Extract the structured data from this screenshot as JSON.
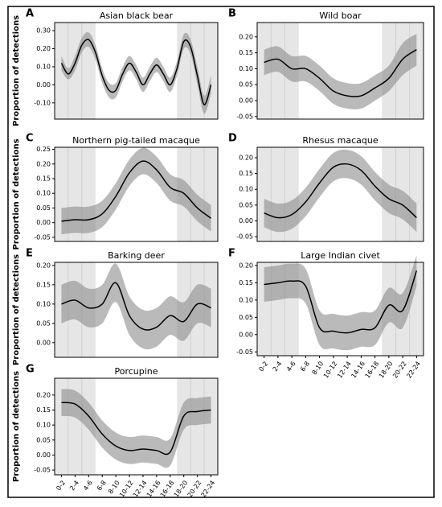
{
  "chart_data": [
    {
      "type": "line",
      "letter": "A",
      "title": "Asian black bear",
      "ylabel": "Proportion of detections",
      "x": [
        1,
        2,
        3,
        4,
        5,
        6,
        7,
        8,
        9,
        10,
        11,
        12,
        13,
        14,
        15,
        16,
        17,
        18,
        19,
        20,
        21,
        22,
        23
      ],
      "values": [
        0.12,
        0.06,
        0.12,
        0.22,
        0.25,
        0.18,
        0.05,
        -0.03,
        -0.03,
        0.06,
        0.12,
        0.07,
        0.0,
        0.06,
        0.11,
        0.06,
        0.0,
        0.09,
        0.24,
        0.21,
        0.05,
        -0.11,
        0.0
      ],
      "lower": [
        0.08,
        0.03,
        0.08,
        0.18,
        0.21,
        0.14,
        0.01,
        -0.07,
        -0.07,
        0.02,
        0.08,
        0.03,
        -0.04,
        0.02,
        0.07,
        0.02,
        -0.04,
        0.05,
        0.2,
        0.17,
        0.0,
        -0.16,
        -0.05
      ],
      "upper": [
        0.16,
        0.09,
        0.16,
        0.26,
        0.29,
        0.22,
        0.09,
        0.01,
        0.01,
        0.1,
        0.16,
        0.11,
        0.04,
        0.1,
        0.15,
        0.1,
        0.04,
        0.13,
        0.28,
        0.25,
        0.1,
        -0.06,
        0.05
      ],
      "xlim": [
        0,
        24
      ],
      "ylim": [
        -0.19,
        0.345
      ],
      "shade": [
        [
          0,
          6
        ],
        [
          18,
          24
        ]
      ],
      "yticks": [
        {
          "value": -0.1,
          "label": "-0.10"
        },
        {
          "value": 0,
          "label": "0.00"
        },
        {
          "value": 0.1,
          "label": "0.10"
        },
        {
          "value": 0.2,
          "label": "0.20"
        },
        {
          "value": 0.3,
          "label": "0.30"
        }
      ]
    },
    {
      "type": "line",
      "letter": "B",
      "title": "Wild boar",
      "x": [
        1,
        3,
        5,
        7,
        9,
        11,
        13,
        15,
        17,
        19,
        21,
        23
      ],
      "values": [
        0.12,
        0.13,
        0.1,
        0.1,
        0.07,
        0.03,
        0.015,
        0.015,
        0.04,
        0.07,
        0.13,
        0.16
      ],
      "lower": [
        0.08,
        0.09,
        0.06,
        0.06,
        0.03,
        -0.01,
        -0.025,
        -0.025,
        0.0,
        0.03,
        0.08,
        0.11
      ],
      "upper": [
        0.16,
        0.17,
        0.14,
        0.14,
        0.11,
        0.07,
        0.055,
        0.055,
        0.08,
        0.11,
        0.18,
        0.21
      ],
      "xlim": [
        0,
        24
      ],
      "ylim": [
        -0.058,
        0.245
      ],
      "shade": [
        [
          0,
          6
        ],
        [
          18,
          24
        ]
      ],
      "yticks": [
        {
          "value": -0.05,
          "label": "-0.05"
        },
        {
          "value": 0,
          "label": "0.00"
        },
        {
          "value": 0.05,
          "label": "0.05"
        },
        {
          "value": 0.1,
          "label": "0.10"
        },
        {
          "value": 0.15,
          "label": "0.15"
        },
        {
          "value": 0.2,
          "label": "0.20"
        }
      ]
    },
    {
      "type": "line",
      "letter": "C",
      "title": "Northern pig-tailed macaque",
      "ylabel": "Proportion of detections",
      "x": [
        1,
        3,
        5,
        7,
        9,
        11,
        13,
        15,
        17,
        19,
        21,
        23
      ],
      "values": [
        0.005,
        0.01,
        0.01,
        0.03,
        0.09,
        0.17,
        0.21,
        0.18,
        0.12,
        0.1,
        0.05,
        0.015
      ],
      "lower": [
        -0.04,
        -0.035,
        -0.035,
        -0.015,
        0.045,
        0.125,
        0.165,
        0.135,
        0.075,
        0.055,
        0.005,
        -0.03
      ],
      "upper": [
        0.05,
        0.055,
        0.055,
        0.075,
        0.135,
        0.215,
        0.255,
        0.225,
        0.165,
        0.145,
        0.095,
        0.06
      ],
      "xlim": [
        0,
        24
      ],
      "ylim": [
        -0.064,
        0.257
      ],
      "shade": [
        [
          0,
          6
        ],
        [
          18,
          24
        ]
      ],
      "yticks": [
        {
          "value": -0.05,
          "label": "-0.05"
        },
        {
          "value": 0,
          "label": "0.00"
        },
        {
          "value": 0.05,
          "label": "0.05"
        },
        {
          "value": 0.1,
          "label": "0.10"
        },
        {
          "value": 0.15,
          "label": "0.15"
        },
        {
          "value": 0.2,
          "label": "0.20"
        },
        {
          "value": 0.25,
          "label": "0.25"
        }
      ]
    },
    {
      "type": "line",
      "letter": "D",
      "title": "Rhesus macaque",
      "x": [
        1,
        3,
        5,
        7,
        9,
        11,
        13,
        15,
        17,
        19,
        21,
        23
      ],
      "values": [
        0.025,
        0.01,
        0.02,
        0.06,
        0.12,
        0.17,
        0.18,
        0.16,
        0.11,
        0.07,
        0.05,
        0.01
      ],
      "lower": [
        -0.02,
        -0.035,
        -0.025,
        0.015,
        0.075,
        0.125,
        0.135,
        0.115,
        0.065,
        0.025,
        0.005,
        -0.035
      ],
      "upper": [
        0.07,
        0.055,
        0.065,
        0.105,
        0.165,
        0.215,
        0.225,
        0.205,
        0.155,
        0.115,
        0.095,
        0.055
      ],
      "xlim": [
        0,
        24
      ],
      "ylim": [
        -0.065,
        0.233
      ],
      "shade": [
        [
          0,
          6
        ],
        [
          18,
          24
        ]
      ],
      "yticks": [
        {
          "value": -0.05,
          "label": "-0.05"
        },
        {
          "value": 0,
          "label": "0.00"
        },
        {
          "value": 0.05,
          "label": "0.05"
        },
        {
          "value": 0.1,
          "label": "0.10"
        },
        {
          "value": 0.15,
          "label": "0.15"
        },
        {
          "value": 0.2,
          "label": "0.20"
        }
      ]
    },
    {
      "type": "line",
      "letter": "E",
      "title": "Barking deer",
      "ylabel": "Proportion of detections",
      "x": [
        1,
        3,
        5,
        7,
        9,
        11,
        13,
        15,
        17,
        19,
        21,
        23
      ],
      "values": [
        0.1,
        0.11,
        0.09,
        0.1,
        0.155,
        0.07,
        0.035,
        0.04,
        0.07,
        0.055,
        0.1,
        0.09
      ],
      "lower": [
        0.05,
        0.06,
        0.04,
        0.05,
        0.105,
        0.02,
        -0.015,
        -0.01,
        0.02,
        0.005,
        0.05,
        0.04
      ],
      "upper": [
        0.15,
        0.16,
        0.14,
        0.15,
        0.205,
        0.12,
        0.085,
        0.09,
        0.12,
        0.105,
        0.15,
        0.14
      ],
      "xlim": [
        0,
        24
      ],
      "ylim": [
        -0.038,
        0.208
      ],
      "shade": [
        [
          0,
          6
        ],
        [
          18,
          24
        ]
      ],
      "yticks": [
        {
          "value": 0,
          "label": "0.00"
        },
        {
          "value": 0.05,
          "label": "0.05"
        },
        {
          "value": 0.1,
          "label": "0.10"
        },
        {
          "value": 0.15,
          "label": "0.15"
        },
        {
          "value": 0.2,
          "label": "0.20"
        }
      ]
    },
    {
      "type": "line",
      "letter": "F",
      "title": "Large Indian civet",
      "x": [
        1,
        3,
        5,
        7,
        9,
        11,
        13,
        15,
        17,
        19,
        21,
        23
      ],
      "values": [
        0.145,
        0.15,
        0.155,
        0.14,
        0.02,
        0.01,
        0.005,
        0.015,
        0.02,
        0.085,
        0.07,
        0.185
      ],
      "lower": [
        0.095,
        0.1,
        0.105,
        0.09,
        -0.03,
        -0.04,
        -0.045,
        -0.035,
        -0.03,
        0.035,
        0.02,
        0.14
      ],
      "upper": [
        0.195,
        0.2,
        0.205,
        0.19,
        0.07,
        0.06,
        0.055,
        0.065,
        0.07,
        0.135,
        0.12,
        0.23
      ],
      "xlim": [
        0,
        24
      ],
      "ylim": [
        -0.061,
        0.209
      ],
      "shade": [
        [
          0,
          6
        ],
        [
          18,
          24
        ]
      ],
      "yticks": [
        {
          "value": -0.05,
          "label": "-0.05"
        },
        {
          "value": 0,
          "label": "0.00"
        },
        {
          "value": 0.05,
          "label": "0.05"
        },
        {
          "value": 0.1,
          "label": "0.10"
        },
        {
          "value": 0.15,
          "label": "0.15"
        },
        {
          "value": 0.2,
          "label": "0.20"
        }
      ],
      "xticks": [
        {
          "value": 1,
          "label": "0-2"
        },
        {
          "value": 3,
          "label": "2-4"
        },
        {
          "value": 5,
          "label": "4-6"
        },
        {
          "value": 7,
          "label": "6-8"
        },
        {
          "value": 9,
          "label": "8-10"
        },
        {
          "value": 11,
          "label": "10-12"
        },
        {
          "value": 13,
          "label": "12-14"
        },
        {
          "value": 15,
          "label": "14-16"
        },
        {
          "value": 17,
          "label": "16-18"
        },
        {
          "value": 19,
          "label": "18-20"
        },
        {
          "value": 21,
          "label": "20-22"
        },
        {
          "value": 23,
          "label": "22-24"
        }
      ]
    },
    {
      "type": "line",
      "letter": "G",
      "title": "Porcupine",
      "ylabel": "Proportion of detections",
      "x": [
        1,
        3,
        5,
        7,
        9,
        11,
        13,
        15,
        17,
        19,
        21,
        23
      ],
      "values": [
        0.175,
        0.17,
        0.13,
        0.07,
        0.03,
        0.015,
        0.02,
        0.015,
        0.01,
        0.13,
        0.145,
        0.15
      ],
      "lower": [
        0.13,
        0.125,
        0.085,
        0.025,
        -0.015,
        -0.03,
        -0.025,
        -0.03,
        -0.035,
        0.085,
        0.1,
        0.105
      ],
      "upper": [
        0.22,
        0.215,
        0.175,
        0.115,
        0.075,
        0.06,
        0.065,
        0.06,
        0.055,
        0.175,
        0.19,
        0.195
      ],
      "xlim": [
        0,
        24
      ],
      "ylim": [
        -0.066,
        0.256
      ],
      "shade": [
        [
          0,
          6
        ],
        [
          18,
          24
        ]
      ],
      "yticks": [
        {
          "value": -0.05,
          "label": "-0.05"
        },
        {
          "value": 0,
          "label": "0.00"
        },
        {
          "value": 0.05,
          "label": "0.05"
        },
        {
          "value": 0.1,
          "label": "0.10"
        },
        {
          "value": 0.15,
          "label": "0.15"
        },
        {
          "value": 0.2,
          "label": "0.20"
        }
      ],
      "xticks": [
        {
          "value": 1,
          "label": "0-2"
        },
        {
          "value": 3,
          "label": "2-4"
        },
        {
          "value": 5,
          "label": "4-6"
        },
        {
          "value": 7,
          "label": "6-8"
        },
        {
          "value": 9,
          "label": "8-10"
        },
        {
          "value": 11,
          "label": "10-12"
        },
        {
          "value": 13,
          "label": "12-14"
        },
        {
          "value": 15,
          "label": "14-16"
        },
        {
          "value": 17,
          "label": "16-18"
        },
        {
          "value": 19,
          "label": "18-20"
        },
        {
          "value": 21,
          "label": "20-22"
        },
        {
          "value": 23,
          "label": "22-24"
        }
      ]
    }
  ]
}
